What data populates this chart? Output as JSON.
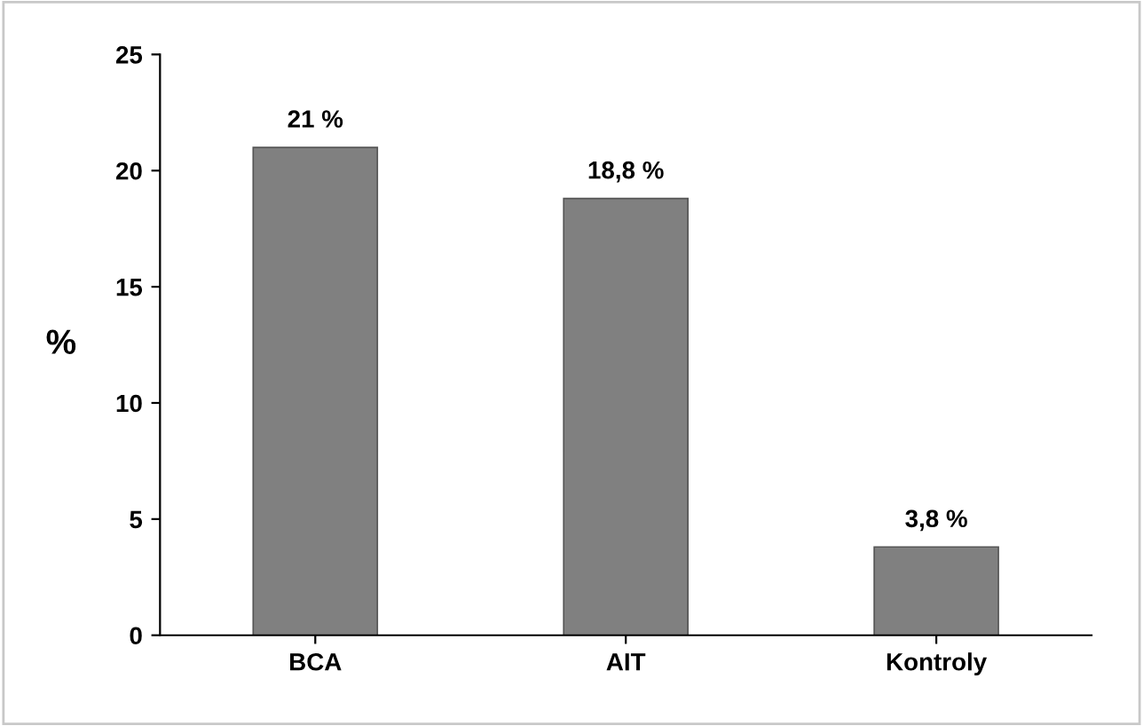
{
  "chart_data": {
    "type": "bar",
    "ylabel": "%",
    "categories": [
      "BCA",
      "AIT",
      "Kontroly"
    ],
    "values": [
      21,
      18.8,
      3.8
    ],
    "value_labels": [
      "21 %",
      "18,8 %",
      "3,8 %"
    ],
    "color": "#808080",
    "ylim": [
      0,
      25
    ],
    "yticks": [
      0,
      5,
      10,
      15,
      20,
      25
    ],
    "grid": false,
    "legend": false
  }
}
